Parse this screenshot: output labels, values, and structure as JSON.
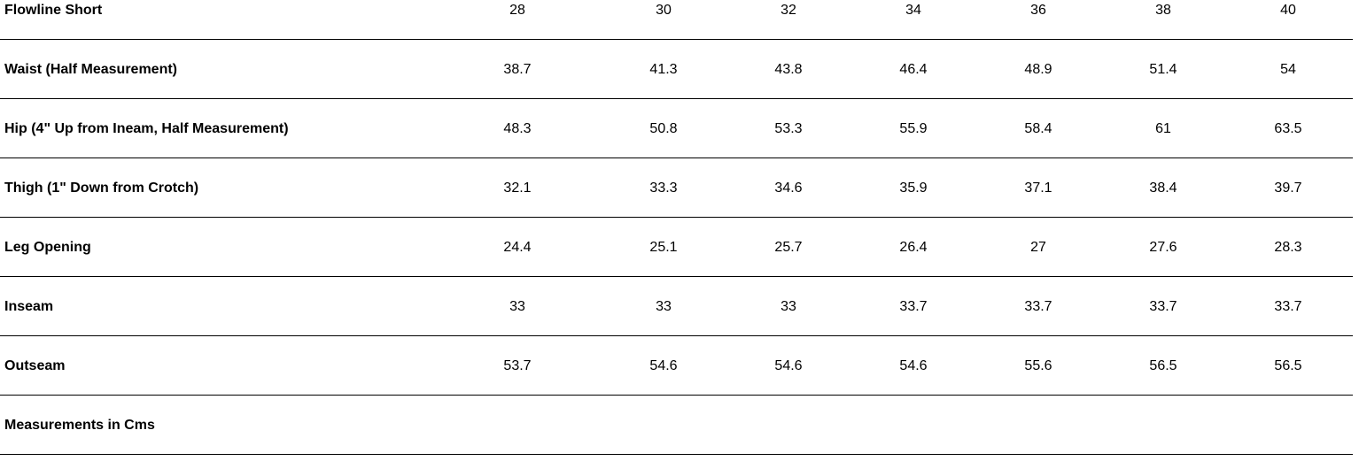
{
  "table": {
    "header": [
      "Flowline Short",
      28,
      30,
      32,
      34,
      36,
      38,
      40
    ],
    "rows": [
      [
        "Waist (Half Measurement)",
        38.7,
        41.3,
        43.8,
        46.4,
        48.9,
        51.4,
        54
      ],
      [
        "Hip (4\" Up from Ineam, Half Measurement)",
        48.3,
        50.8,
        53.3,
        55.9,
        58.4,
        61,
        63.5
      ],
      [
        "Thigh (1\" Down from Crotch)",
        32.1,
        33.3,
        34.6,
        35.9,
        37.1,
        38.4,
        39.7
      ],
      [
        "Leg Opening",
        24.4,
        25.1,
        25.7,
        26.4,
        27,
        27.6,
        28.3
      ],
      [
        "Inseam",
        33,
        33,
        33,
        33.7,
        33.7,
        33.7,
        33.7
      ],
      [
        "Outseam",
        53.7,
        54.6,
        54.6,
        54.6,
        55.6,
        56.5,
        56.5
      ]
    ],
    "footer": "Measurements in Cms"
  }
}
